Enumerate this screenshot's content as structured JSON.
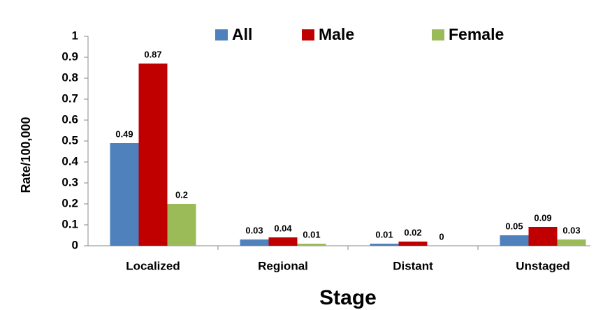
{
  "chart_data": {
    "type": "bar",
    "y_label": "Rate/100,000",
    "x_label": "Stage",
    "categories": [
      "Localized",
      "Regional",
      "Distant",
      "Unstaged"
    ],
    "series": [
      {
        "name": "All",
        "color": "#4f81bd",
        "values": [
          0.49,
          0.03,
          0.01,
          0.05
        ]
      },
      {
        "name": "Male",
        "color": "#c00000",
        "values": [
          0.87,
          0.04,
          0.02,
          0.09
        ]
      },
      {
        "name": "Female",
        "color": "#9bbb59",
        "values": [
          0.2,
          0.01,
          0,
          0.03
        ]
      }
    ],
    "ylim": [
      0,
      1
    ],
    "yticks": [
      0,
      0.1,
      0.2,
      0.3,
      0.4,
      0.5,
      0.6,
      0.7,
      0.8,
      0.9,
      1
    ],
    "grid": false,
    "legend": "top"
  }
}
